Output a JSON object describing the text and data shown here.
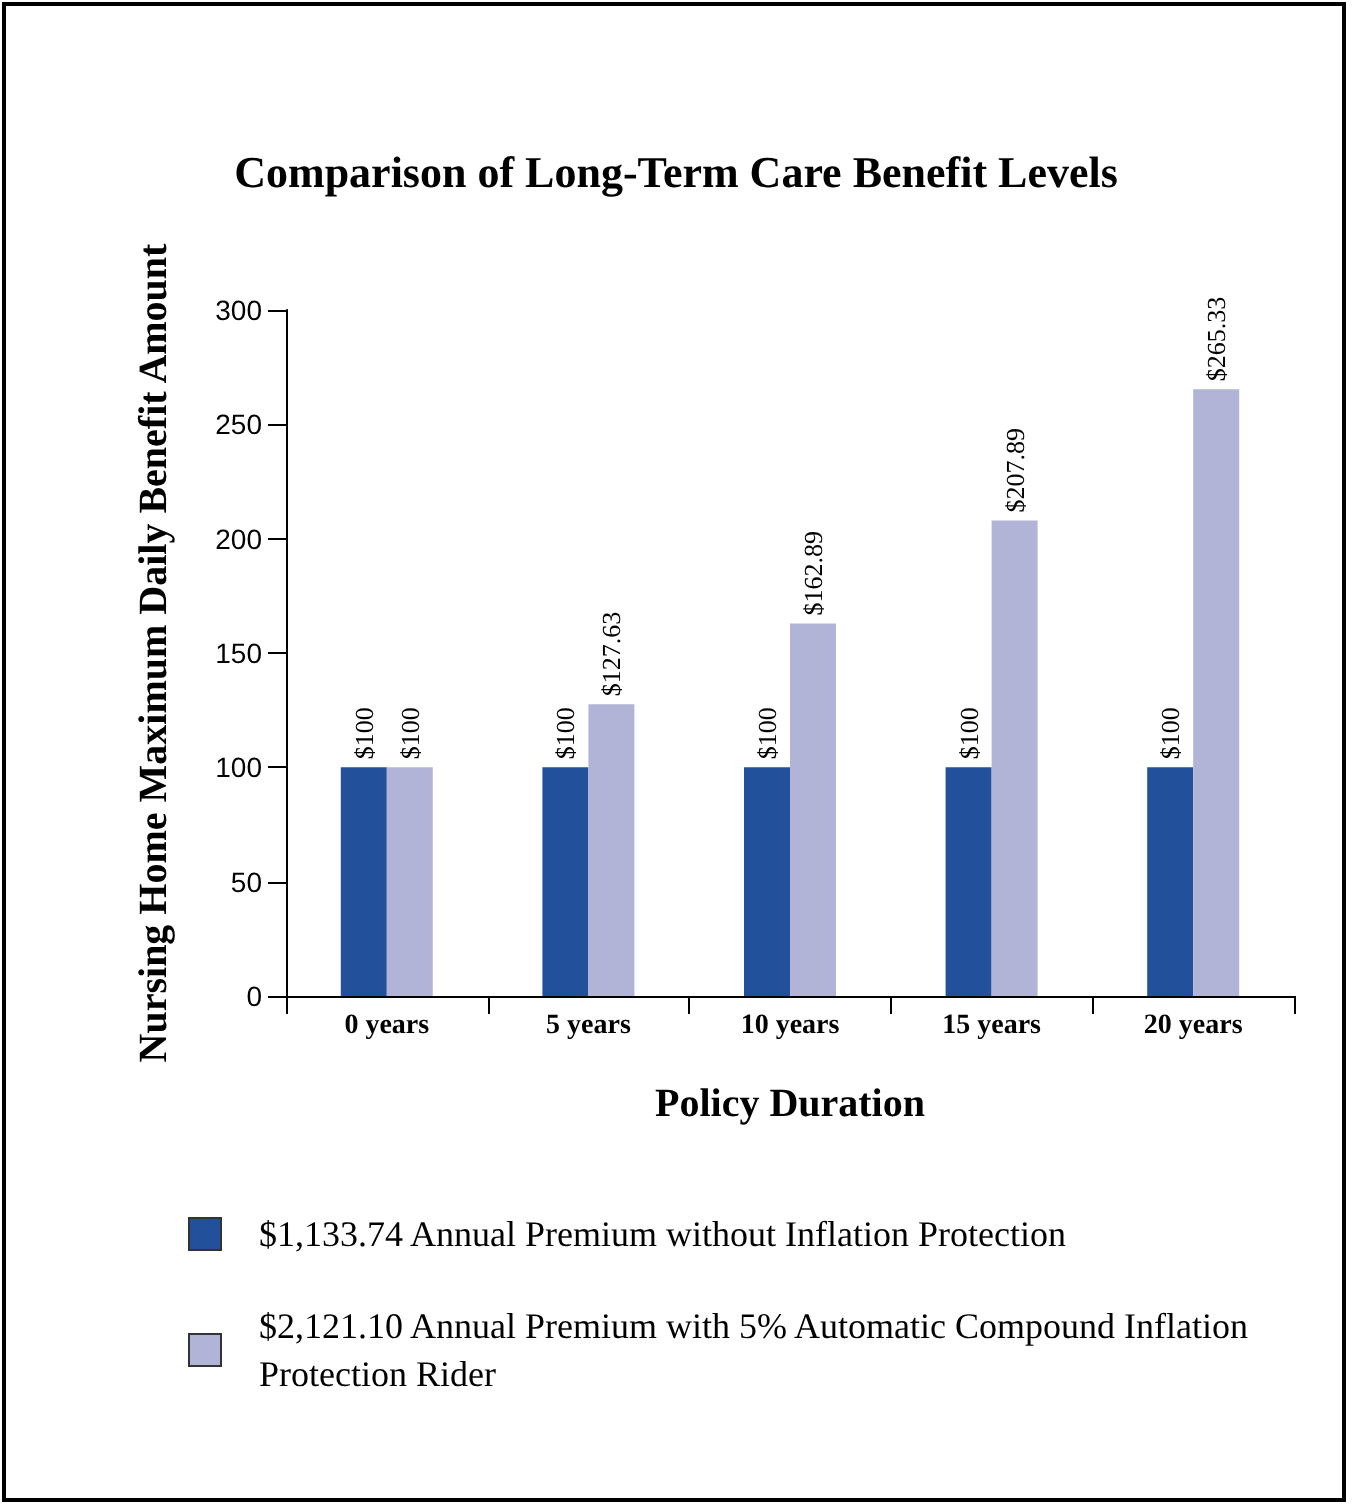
{
  "chart_data": {
    "type": "bar",
    "title": "Comparison of Long-Term Care Benefit Levels",
    "xlabel": "Policy Duration",
    "ylabel": "Nursing Home Maximum Daily Benefit Amount",
    "categories": [
      "0 years",
      "5 years",
      "10 years",
      "15 years",
      "20 years"
    ],
    "series": [
      {
        "name": "$1,133.74 Annual Premium without Inflation Protection",
        "color": "#22509a",
        "values": [
          100,
          100,
          100,
          100,
          100
        ],
        "value_labels": [
          "$100",
          "$100",
          "$100",
          "$100",
          "$100"
        ]
      },
      {
        "name": "$2,121.10 Annual Premium with 5% Automatic Compound Inflation Protection Rider",
        "color": "#b1b4d7",
        "values": [
          100,
          127.63,
          162.89,
          207.89,
          265.33
        ],
        "value_labels": [
          "$100",
          "$127.63",
          "$162.89",
          "$207.89",
          "$265.33"
        ]
      }
    ],
    "ylim": [
      0,
      300
    ],
    "yticks": [
      0,
      50,
      100,
      150,
      200,
      250,
      300
    ],
    "grid": false,
    "legend": "bottom"
  }
}
